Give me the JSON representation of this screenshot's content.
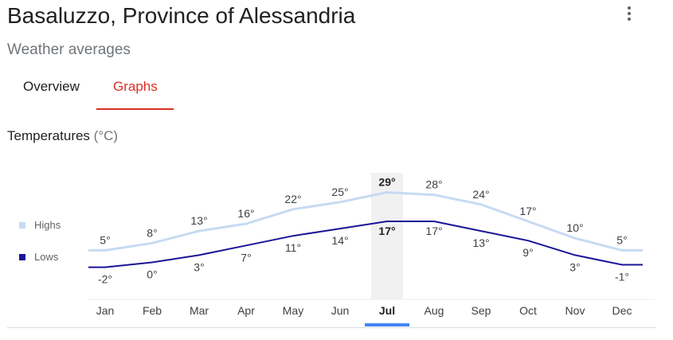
{
  "header": {
    "title": "Basaluzzo, Province of Alessandria",
    "subtitle": "Weather averages",
    "more_icon": "more-vert-icon"
  },
  "tabs": [
    {
      "label": "Overview",
      "selected": false
    },
    {
      "label": "Graphs",
      "selected": true
    }
  ],
  "section": {
    "title": "Temperatures",
    "unit": "(°C)"
  },
  "legend": {
    "highs_label": "Highs",
    "lows_label": "Lows"
  },
  "colors": {
    "accent_red": "#d93025",
    "highs": "#c6dbf2",
    "lows": "#1a1597",
    "selected_column": "#f1f1f1",
    "selected_marker": "#4285f4"
  },
  "chart_data": {
    "type": "line",
    "categories": [
      "Jan",
      "Feb",
      "Mar",
      "Apr",
      "May",
      "Jun",
      "Jul",
      "Aug",
      "Sep",
      "Oct",
      "Nov",
      "Dec"
    ],
    "selected": "Jul",
    "series": [
      {
        "name": "Highs",
        "values": [
          5,
          8,
          13,
          16,
          22,
          25,
          29,
          28,
          24,
          17,
          10,
          5
        ],
        "labels": [
          "5°",
          "8°",
          "13°",
          "16°",
          "22°",
          "25°",
          "29°",
          "28°",
          "24°",
          "17°",
          "10°",
          "5°"
        ]
      },
      {
        "name": "Lows",
        "values": [
          -2,
          0,
          3,
          7,
          11,
          14,
          17,
          17,
          13,
          9,
          3,
          -1
        ],
        "labels": [
          "-2°",
          "0°",
          "3°",
          "7°",
          "11°",
          "14°",
          "17°",
          "17°",
          "13°",
          "9°",
          "3°",
          "-1°"
        ]
      }
    ]
  }
}
